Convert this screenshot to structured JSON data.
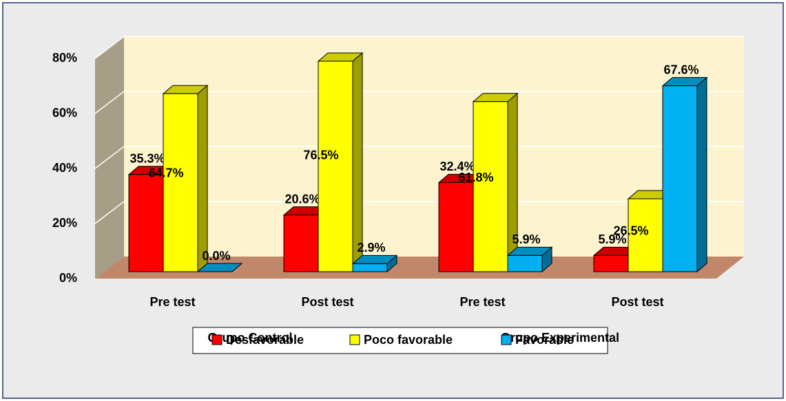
{
  "chart_data": {
    "type": "bar3d",
    "categories": [
      "Pre test",
      "Post test",
      "Pre test",
      "Post test"
    ],
    "groups": [
      "Grupo Control",
      "Grupo Experimental"
    ],
    "series": [
      {
        "name": "Desfavorable",
        "color": "#ff0000",
        "values": [
          35.3,
          20.6,
          32.4,
          5.9
        ],
        "value_labels": [
          "35.3%",
          "20.6%",
          "32.4%",
          "5.9%"
        ]
      },
      {
        "name": "Poco favorable",
        "color": "#ffff00",
        "values": [
          64.7,
          76.5,
          61.8,
          26.5
        ],
        "value_labels": [
          "64.7%",
          "76.5%",
          "61.8%",
          "26.5%"
        ]
      },
      {
        "name": "Favorable",
        "color": "#00b0f0",
        "values": [
          0.0,
          2.9,
          5.9,
          67.6
        ],
        "value_labels": [
          "0.0%",
          "2.9%",
          "5.9%",
          "67.6%"
        ]
      }
    ],
    "ylim": [
      0,
      80
    ],
    "yticks": [
      {
        "value": 0,
        "label": "0%"
      },
      {
        "value": 20,
        "label": "20%"
      },
      {
        "value": 40,
        "label": "40%"
      },
      {
        "value": 60,
        "label": "60%"
      },
      {
        "value": 80,
        "label": "80%"
      }
    ],
    "grid": true,
    "legend": "bottom"
  }
}
